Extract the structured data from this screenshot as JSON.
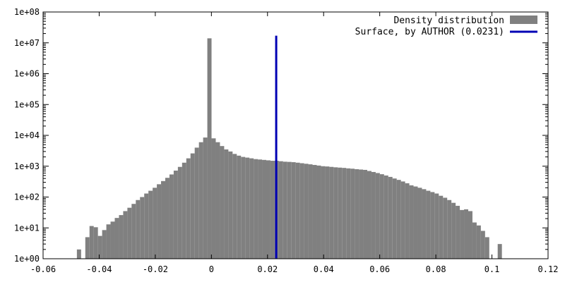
{
  "chart_data": {
    "type": "bar",
    "y_scale": "log",
    "xlim": [
      -0.06,
      0.12
    ],
    "ylim": [
      1,
      100000000
    ],
    "x_ticks": [
      "-0.06",
      "-0.04",
      "-0.02",
      "0",
      "0.02",
      "0.04",
      "0.06",
      "0.08",
      "0.1",
      "0.12"
    ],
    "x_tick_values": [
      -0.06,
      -0.04,
      -0.02,
      0,
      0.02,
      0.04,
      0.06,
      0.08,
      0.1,
      0.12
    ],
    "y_ticks": [
      "1e+00",
      "1e+01",
      "1e+02",
      "1e+03",
      "1e+04",
      "1e+05",
      "1e+06",
      "1e+07",
      "1e+08"
    ],
    "y_tick_values": [
      1,
      10,
      100,
      1000,
      10000,
      100000,
      1000000,
      10000000,
      100000000
    ],
    "grid": false,
    "legend_position": "top-right",
    "bar_color": "#808080",
    "line_color": "#0000b4",
    "series": [
      {
        "name": "Density distribution",
        "kind": "histogram",
        "bin_width": 0.0015,
        "x": [
          -0.0472,
          -0.0457,
          -0.0442,
          -0.0427,
          -0.0412,
          -0.0397,
          -0.0382,
          -0.0367,
          -0.0352,
          -0.0337,
          -0.0322,
          -0.0307,
          -0.0292,
          -0.0277,
          -0.0262,
          -0.0247,
          -0.0232,
          -0.0217,
          -0.0202,
          -0.0187,
          -0.0172,
          -0.0157,
          -0.0142,
          -0.0127,
          -0.0112,
          -0.0097,
          -0.0082,
          -0.0067,
          -0.0052,
          -0.0037,
          -0.0022,
          -0.0007,
          0.0008,
          0.0023,
          0.0038,
          0.0053,
          0.0068,
          0.0083,
          0.0098,
          0.0113,
          0.0128,
          0.0143,
          0.0158,
          0.0173,
          0.0188,
          0.0203,
          0.0218,
          0.0233,
          0.0248,
          0.0263,
          0.0278,
          0.0293,
          0.0308,
          0.0323,
          0.0338,
          0.0353,
          0.0368,
          0.0383,
          0.0398,
          0.0413,
          0.0428,
          0.0443,
          0.0458,
          0.0473,
          0.0488,
          0.0503,
          0.0518,
          0.0533,
          0.0548,
          0.0563,
          0.0578,
          0.0593,
          0.0608,
          0.0623,
          0.0638,
          0.0653,
          0.0668,
          0.0683,
          0.0698,
          0.0713,
          0.0728,
          0.0743,
          0.0758,
          0.0773,
          0.0788,
          0.0803,
          0.0818,
          0.0833,
          0.0848,
          0.0863,
          0.0878,
          0.0893,
          0.0908,
          0.0923,
          0.0938,
          0.0953,
          0.0968,
          0.0983,
          0.1028
        ],
        "values": [
          2,
          0,
          5,
          11.5,
          10.5,
          5.5,
          8.5,
          13,
          16,
          21,
          26,
          35,
          45,
          60,
          80,
          100,
          130,
          160,
          200,
          260,
          330,
          420,
          540,
          720,
          950,
          1300,
          1800,
          2600,
          4000,
          6000,
          8500,
          14000000,
          8000,
          6000,
          4500,
          3500,
          3000,
          2500,
          2200,
          2000,
          1900,
          1800,
          1700,
          1650,
          1600,
          1550,
          1500,
          1500,
          1450,
          1400,
          1380,
          1350,
          1300,
          1250,
          1200,
          1150,
          1100,
          1050,
          1000,
          980,
          950,
          920,
          900,
          880,
          850,
          830,
          800,
          780,
          760,
          700,
          650,
          600,
          550,
          500,
          450,
          400,
          360,
          320,
          280,
          240,
          220,
          200,
          180,
          160,
          145,
          130,
          110,
          95,
          80,
          65,
          52,
          38,
          40,
          35,
          15,
          12,
          8,
          5,
          3
        ]
      },
      {
        "name": "Surface, by AUTHOR (0.0231)",
        "kind": "vertical_line",
        "x": 0.0231,
        "y_top": 17000000
      }
    ]
  }
}
